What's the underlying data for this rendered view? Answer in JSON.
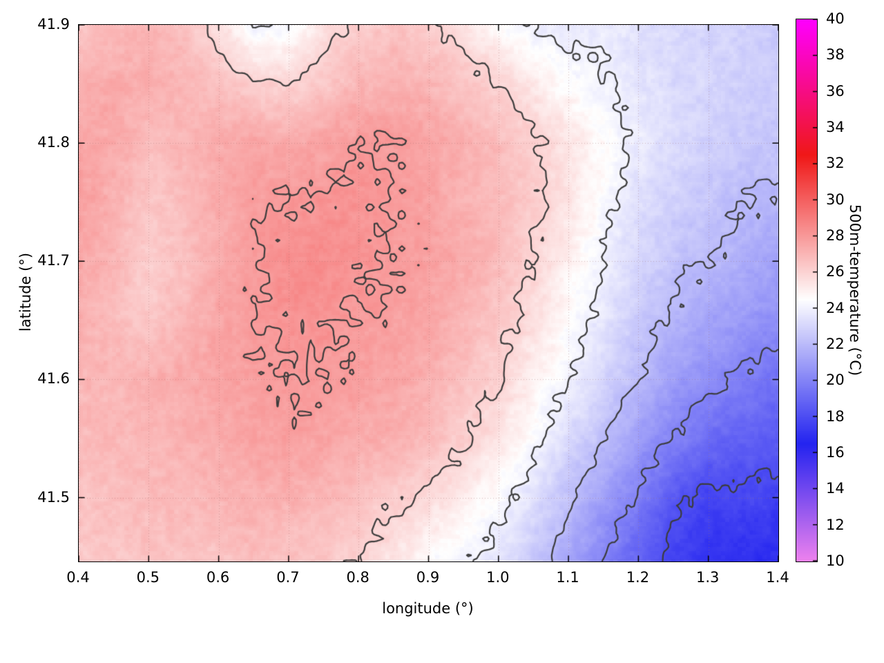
{
  "chart_data": {
    "type": "heatmap",
    "title": "",
    "xlabel": "longitude (°)",
    "ylabel": "latitude (°)",
    "colorbar_label": "500m-temperature (°C)",
    "x_range": [
      0.4,
      1.4
    ],
    "y_range": [
      41.446,
      41.9
    ],
    "x_tick_values": [
      0.4,
      0.5,
      0.6,
      0.7,
      0.8,
      0.9,
      1.0,
      1.1,
      1.2,
      1.3,
      1.4
    ],
    "x_tick_labels": [
      "0.4",
      "0.5",
      "0.6",
      "0.7",
      "0.8",
      "0.9",
      "1.0",
      "1.1",
      "1.2",
      "1.3",
      "1.4"
    ],
    "y_tick_values": [
      41.5,
      41.6,
      41.7,
      41.8,
      41.9
    ],
    "y_tick_labels": [
      "41.5",
      "41.6",
      "41.7",
      "41.8",
      "41.9"
    ],
    "colorbar_range": [
      10,
      40
    ],
    "colorbar_tick_values": [
      10,
      12,
      14,
      16,
      18,
      20,
      22,
      24,
      26,
      28,
      30,
      32,
      34,
      36,
      38,
      40
    ],
    "colorbar_tick_labels": [
      "10",
      "12",
      "14",
      "16",
      "18",
      "20",
      "22",
      "24",
      "26",
      "28",
      "30",
      "32",
      "34",
      "36",
      "38",
      "40"
    ],
    "contour_levels": [
      18,
      20,
      22,
      24,
      26,
      28
    ],
    "contour_color": "#3c3c3c",
    "grid_lines": true,
    "palette_stops": [
      [
        10,
        "#ee82ee"
      ],
      [
        16.5,
        "#2424f0"
      ],
      [
        24.5,
        "#ffffff"
      ],
      [
        32.5,
        "#f01818"
      ],
      [
        40,
        "#ff00ff"
      ]
    ],
    "grid": {
      "x0": 0.4,
      "x1": 1.4,
      "y0": 41.9,
      "y1": 41.45,
      "nx": 21,
      "ny": 10,
      "values": [
        [
          26.5,
          26.8,
          27.0,
          26.6,
          25.6,
          24.0,
          24.2,
          25.6,
          26.2,
          26.6,
          26.2,
          25.4,
          24.6,
          24.0,
          23.6,
          23.8,
          23.4,
          23.2,
          23.0,
          22.8,
          22.6
        ],
        [
          27.2,
          27.4,
          27.3,
          27.0,
          26.6,
          26.2,
          26.0,
          26.4,
          27.0,
          27.2,
          27.0,
          26.6,
          26.0,
          25.2,
          24.6,
          24.0,
          23.6,
          23.2,
          23.0,
          22.8,
          22.6
        ],
        [
          27.6,
          27.4,
          26.8,
          27.0,
          27.4,
          27.6,
          27.4,
          27.6,
          28.0,
          28.0,
          27.6,
          27.2,
          26.8,
          26.2,
          25.4,
          24.6,
          23.8,
          23.2,
          22.8,
          22.6,
          22.4
        ],
        [
          27.8,
          27.2,
          26.4,
          26.8,
          27.4,
          27.8,
          28.0,
          28.2,
          28.2,
          28.0,
          27.6,
          27.2,
          26.8,
          26.2,
          25.4,
          24.4,
          23.4,
          22.8,
          22.4,
          22.0,
          21.8
        ],
        [
          27.6,
          27.0,
          26.2,
          26.6,
          27.4,
          28.0,
          28.4,
          28.4,
          28.2,
          28.0,
          27.8,
          27.4,
          26.8,
          26.0,
          25.0,
          24.0,
          23.0,
          22.4,
          22.0,
          21.6,
          21.2
        ],
        [
          27.2,
          26.8,
          26.4,
          27.0,
          27.6,
          28.0,
          28.2,
          28.2,
          28.0,
          27.8,
          27.6,
          27.0,
          26.4,
          25.6,
          24.6,
          23.6,
          22.6,
          21.8,
          21.2,
          20.8,
          20.4
        ],
        [
          27.0,
          27.0,
          27.2,
          27.4,
          27.6,
          27.8,
          28.0,
          28.0,
          27.8,
          27.6,
          27.2,
          26.6,
          26.0,
          25.0,
          24.0,
          23.0,
          22.0,
          21.0,
          20.4,
          19.8,
          19.4
        ],
        [
          26.8,
          26.9,
          27.0,
          27.2,
          27.4,
          27.6,
          27.8,
          27.6,
          27.4,
          27.2,
          26.8,
          26.2,
          25.4,
          24.4,
          23.2,
          22.2,
          21.0,
          20.0,
          19.2,
          18.8,
          18.4
        ],
        [
          26.6,
          26.7,
          26.8,
          26.9,
          27.0,
          27.2,
          27.2,
          27.0,
          26.6,
          26.2,
          25.8,
          25.2,
          24.4,
          23.4,
          22.2,
          21.0,
          19.8,
          18.4,
          17.6,
          17.8,
          17.6
        ],
        [
          26.4,
          26.5,
          26.6,
          26.6,
          26.6,
          26.8,
          26.6,
          26.4,
          26.0,
          25.4,
          24.6,
          24.2,
          23.6,
          22.6,
          21.4,
          20.0,
          18.8,
          17.6,
          17.2,
          17.0,
          16.8
        ]
      ]
    }
  }
}
